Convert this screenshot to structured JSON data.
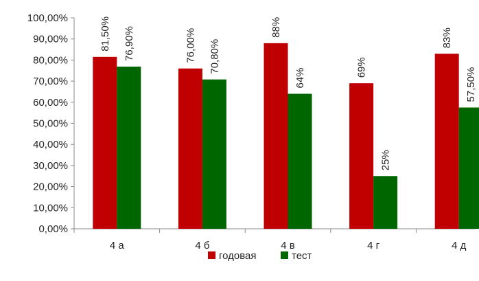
{
  "chart_data": {
    "type": "bar",
    "categories": [
      "4 а",
      "4 б",
      "4 в",
      "4 г",
      "4 д"
    ],
    "series": [
      {
        "name": "годовая",
        "color": "#c00000",
        "values": [
          81.5,
          76.0,
          88.0,
          69.0,
          83.0
        ],
        "labels": [
          "81,50%",
          "76,00%",
          "88%",
          "69%",
          "83%"
        ]
      },
      {
        "name": "тест",
        "color": "#006600",
        "values": [
          76.9,
          70.8,
          64.0,
          25.0,
          57.5
        ],
        "labels": [
          "76,90%",
          "70,80%",
          "64%",
          "25%",
          "57,50%"
        ]
      }
    ],
    "yticks": [
      "0,00%",
      "10,00%",
      "20,00%",
      "30,00%",
      "40,00%",
      "50,00%",
      "60,00%",
      "70,00%",
      "80,00%",
      "90,00%",
      "100,00%"
    ],
    "ylim": [
      0,
      100
    ],
    "title": "",
    "xlabel": "",
    "ylabel": "",
    "grid": false,
    "legend_position": "bottom-center"
  }
}
